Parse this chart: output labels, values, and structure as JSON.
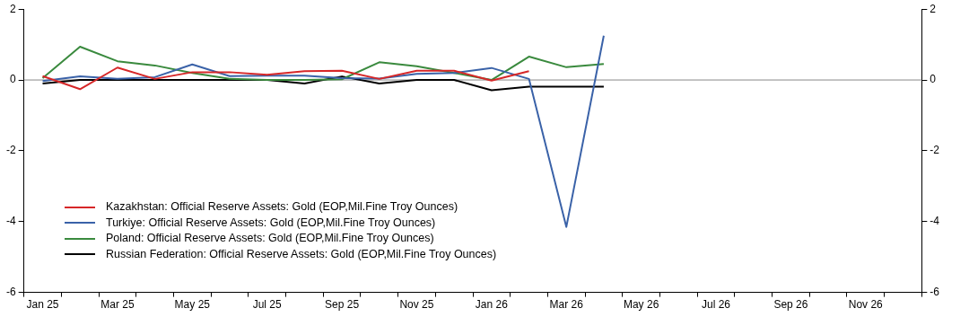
{
  "chart_data": {
    "type": "line",
    "categories": [
      "Jan 25",
      null,
      "Mar 25",
      null,
      "May 25",
      null,
      "Jul 25",
      null,
      "Sep 25",
      null,
      "Nov 25",
      null,
      "Jan 26",
      null,
      "Mar 26",
      null,
      "May 26",
      null,
      "Jul 26",
      null,
      "Sep 26",
      null,
      "Nov 26",
      null
    ],
    "series": [
      {
        "name": "Kazakhstan: Official Reserve Assets: Gold (EOP,Mil.Fine Troy Ounces)",
        "color": "#d62728",
        "values": [
          0.11,
          -0.26,
          0.35,
          0.03,
          0.22,
          0.22,
          0.15,
          0.25,
          0.26,
          0.03,
          0.26,
          0.26,
          -0.02,
          0.25,
          null,
          null,
          null,
          null,
          null,
          null,
          null,
          null,
          null,
          null
        ]
      },
      {
        "name": "Turkiye: Official Reserve Assets: Gold (EOP,Mil.Fine Troy Ounces)",
        "color": "#3a62a8",
        "values": [
          -0.03,
          0.1,
          0.03,
          0.08,
          0.44,
          0.11,
          0.12,
          0.12,
          0.05,
          0.04,
          0.17,
          0.2,
          0.34,
          0.03,
          -4.15,
          1.25,
          null,
          null,
          null,
          null,
          null,
          null,
          null,
          null
        ]
      },
      {
        "name": "Poland: Official Reserve Assets: Gold (EOP,Mil.Fine Troy Ounces)",
        "color": "#3a8a3e",
        "values": [
          0.05,
          0.94,
          0.53,
          0.41,
          0.2,
          0.03,
          0.0,
          0.0,
          0.02,
          0.5,
          0.39,
          0.2,
          0.0,
          0.66,
          0.36,
          0.45,
          null,
          null,
          null,
          null,
          null,
          null,
          null,
          null
        ]
      },
      {
        "name": "Russian Federation: Official Reserve Assets: Gold (EOP,Mil.Fine Troy Ounces)",
        "color": "#000000",
        "values": [
          -0.1,
          0.0,
          0.0,
          0.0,
          0.0,
          0.0,
          0.0,
          -0.1,
          0.1,
          -0.1,
          0.0,
          0.0,
          -0.29,
          -0.19,
          -0.19,
          -0.19,
          null,
          null,
          null,
          null,
          null,
          null,
          null,
          null
        ]
      }
    ],
    "ylim": [
      -6,
      2
    ],
    "yticks": [
      -6,
      -4,
      -2,
      0,
      2
    ],
    "y2lim": [
      -6,
      2
    ],
    "y2ticks": [
      -6,
      -4,
      -2,
      0,
      2
    ],
    "ref_lines": [
      {
        "axis": "y",
        "value": 0,
        "color": "#888888"
      }
    ],
    "grid": false,
    "legend": "bottom left",
    "marker": "none",
    "line_style": "solid"
  }
}
